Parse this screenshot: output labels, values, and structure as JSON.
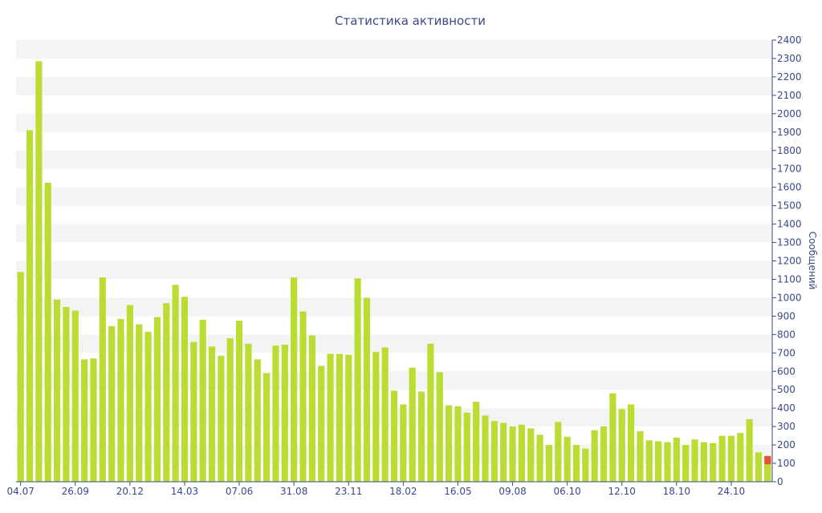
{
  "chart_data": {
    "type": "bar",
    "title": "Статистика активности",
    "ylabel": "Сообщений",
    "xlabel": "",
    "ylim": [
      0,
      2400
    ],
    "y_ticks": [
      0,
      100,
      200,
      300,
      400,
      500,
      600,
      700,
      800,
      900,
      1000,
      1100,
      1200,
      1300,
      1400,
      1500,
      1600,
      1700,
      1800,
      1900,
      2000,
      2100,
      2200,
      2300,
      2400
    ],
    "grid": "alternating horizontal bands",
    "x_tick_labels": [
      {
        "bar_index": 0,
        "label": "04.07"
      },
      {
        "bar_index": 6,
        "label": "26.09"
      },
      {
        "bar_index": 12,
        "label": "20.12"
      },
      {
        "bar_index": 18,
        "label": "14.03"
      },
      {
        "bar_index": 24,
        "label": "07.06"
      },
      {
        "bar_index": 30,
        "label": "31.08"
      },
      {
        "bar_index": 36,
        "label": "23.11"
      },
      {
        "bar_index": 42,
        "label": "18.02"
      },
      {
        "bar_index": 48,
        "label": "16.05"
      },
      {
        "bar_index": 54,
        "label": "09.08"
      },
      {
        "bar_index": 60,
        "label": "06.10"
      },
      {
        "bar_index": 66,
        "label": "12.10"
      },
      {
        "bar_index": 72,
        "label": "18.10"
      },
      {
        "bar_index": 78,
        "label": "24.10"
      }
    ],
    "values": [
      1140,
      1910,
      2285,
      1625,
      990,
      950,
      930,
      665,
      670,
      1110,
      845,
      885,
      960,
      855,
      815,
      895,
      970,
      1070,
      1005,
      760,
      880,
      735,
      685,
      780,
      875,
      750,
      665,
      590,
      740,
      745,
      1110,
      925,
      795,
      630,
      695,
      695,
      690,
      1105,
      1000,
      705,
      730,
      495,
      420,
      620,
      490,
      750,
      595,
      415,
      410,
      375,
      435,
      360,
      330,
      320,
      300,
      310,
      290,
      255,
      200,
      325,
      245,
      200,
      180,
      280,
      300,
      480,
      395,
      420,
      275,
      225,
      220,
      215,
      240,
      200,
      230,
      215,
      210,
      250,
      250,
      265,
      340,
      160,
      140
    ],
    "highlight_color": "#e2542f",
    "highlight_last_partial": 95,
    "bar_color": "#bbdd33",
    "text_color": "#3a4a86"
  }
}
